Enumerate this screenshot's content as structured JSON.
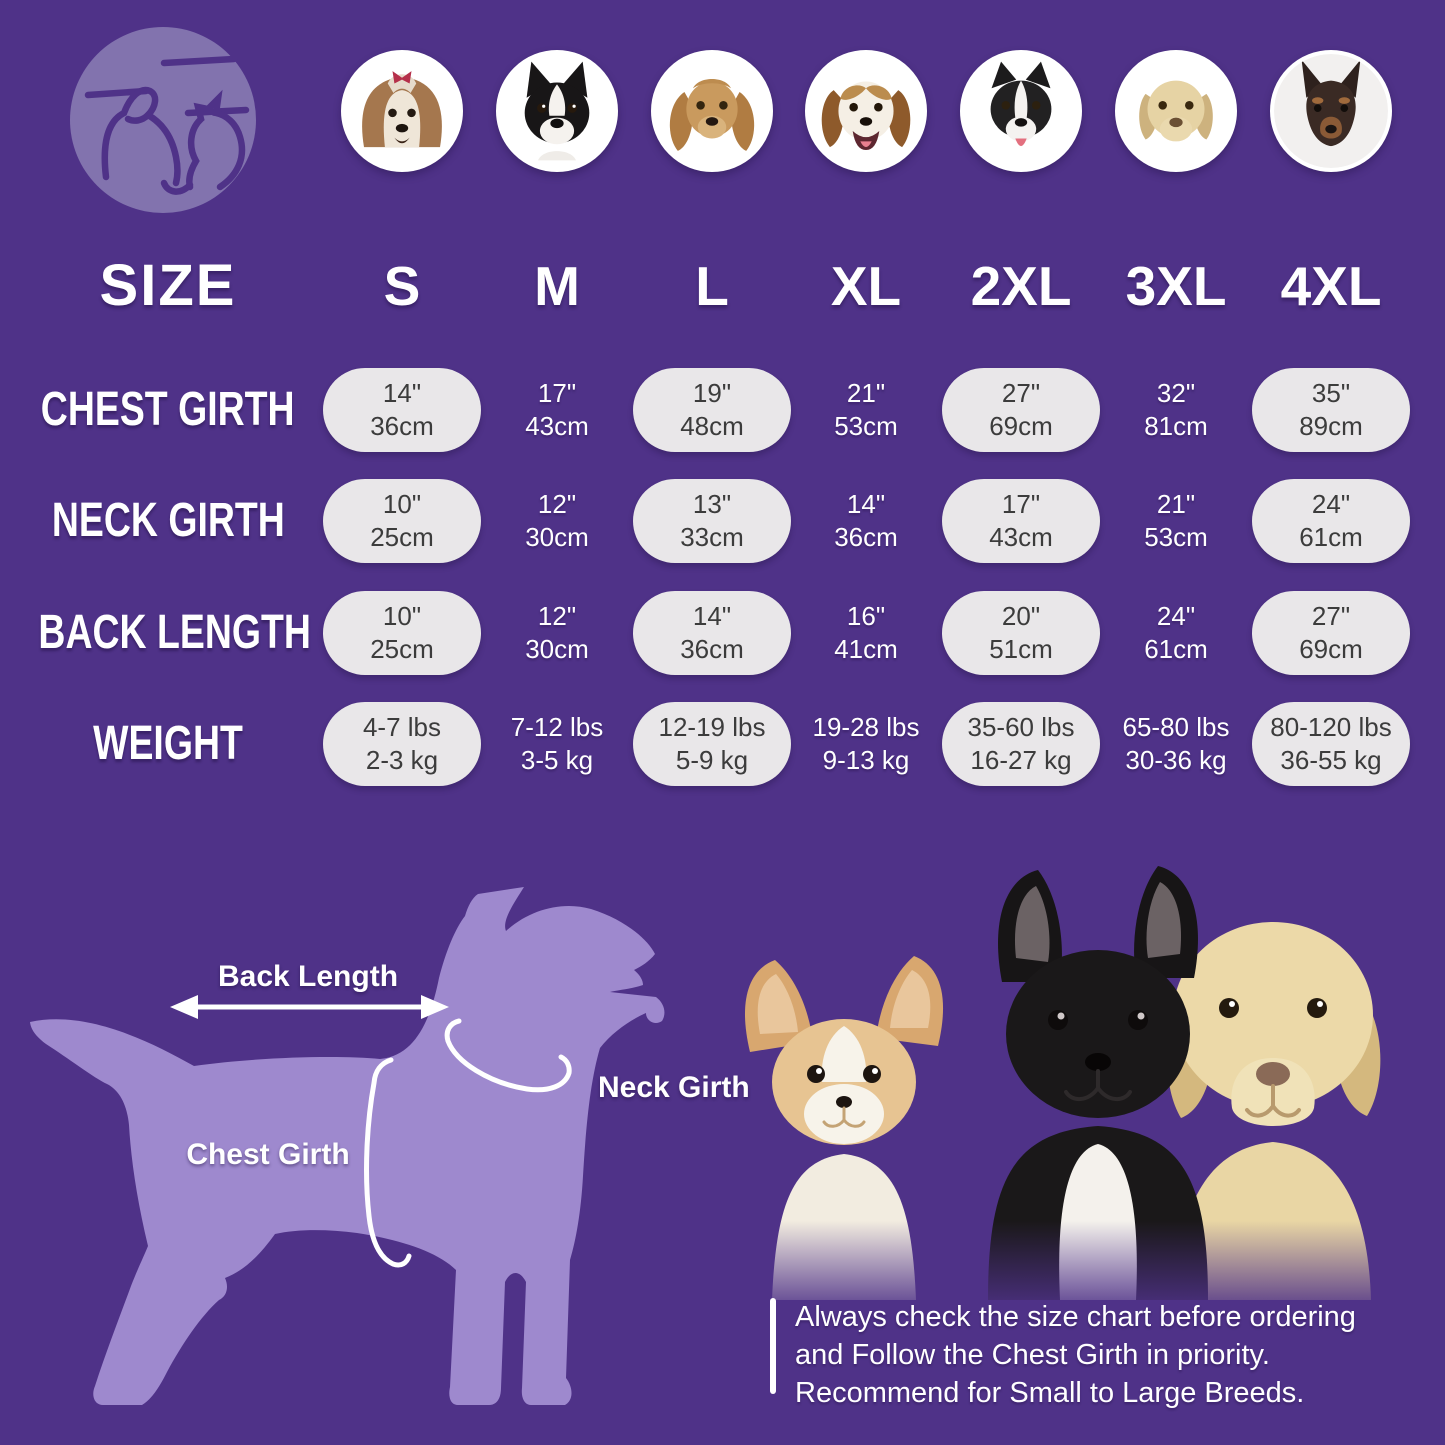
{
  "brand": {
    "logo": "dog-and-cat-pet-logo"
  },
  "size_chart": {
    "corner_label": "SIZE",
    "sizes": [
      "S",
      "M",
      "L",
      "XL",
      "2XL",
      "3XL",
      "4XL"
    ],
    "breed_photos": [
      "shih-tzu",
      "boston-terrier",
      "cocker-spaniel",
      "beagle",
      "border-collie",
      "labrador",
      "doberman"
    ],
    "rows": [
      {
        "label": "CHEST GIRTH",
        "values": [
          [
            "14\"",
            "36cm"
          ],
          [
            "17\"",
            "43cm"
          ],
          [
            "19\"",
            "48cm"
          ],
          [
            "21\"",
            "53cm"
          ],
          [
            "27\"",
            "69cm"
          ],
          [
            "32\"",
            "81cm"
          ],
          [
            "35\"",
            "89cm"
          ]
        ]
      },
      {
        "label": "NECK GIRTH",
        "values": [
          [
            "10\"",
            "25cm"
          ],
          [
            "12\"",
            "30cm"
          ],
          [
            "13\"",
            "33cm"
          ],
          [
            "14\"",
            "36cm"
          ],
          [
            "17\"",
            "43cm"
          ],
          [
            "21\"",
            "53cm"
          ],
          [
            "24\"",
            "61cm"
          ]
        ]
      },
      {
        "label": "BACK LENGTH",
        "values": [
          [
            "10\"",
            "25cm"
          ],
          [
            "12\"",
            "30cm"
          ],
          [
            "14\"",
            "36cm"
          ],
          [
            "16\"",
            "41cm"
          ],
          [
            "20\"",
            "51cm"
          ],
          [
            "24\"",
            "61cm"
          ],
          [
            "27\"",
            "69cm"
          ]
        ]
      },
      {
        "label": "WEIGHT",
        "values": [
          [
            "4-7 lbs",
            "2-3 kg"
          ],
          [
            "7-12 lbs",
            "3-5 kg"
          ],
          [
            "12-19 lbs",
            "5-9 kg"
          ],
          [
            "19-28 lbs",
            "9-13 kg"
          ],
          [
            "35-60 lbs",
            "16-27 kg"
          ],
          [
            "65-80 lbs",
            "30-36 kg"
          ],
          [
            "80-120 lbs",
            "36-55 kg"
          ]
        ]
      }
    ]
  },
  "diagram": {
    "back_length_label": "Back Length",
    "neck_girth_label": "Neck Girth",
    "chest_girth_label": "Chest Girth"
  },
  "note": {
    "lines": [
      "Always check the size chart before ordering",
      "and Follow the Chest Girth in priority.",
      "Recommend for Small to Large Breeds."
    ]
  },
  "colors": {
    "background": "#4f3288",
    "silhouette": "#9e89ce",
    "pill": "#e9e7e9",
    "pill_text": "#3c3c3c",
    "text": "#ffffff",
    "logo_circle": "#8273ae"
  }
}
